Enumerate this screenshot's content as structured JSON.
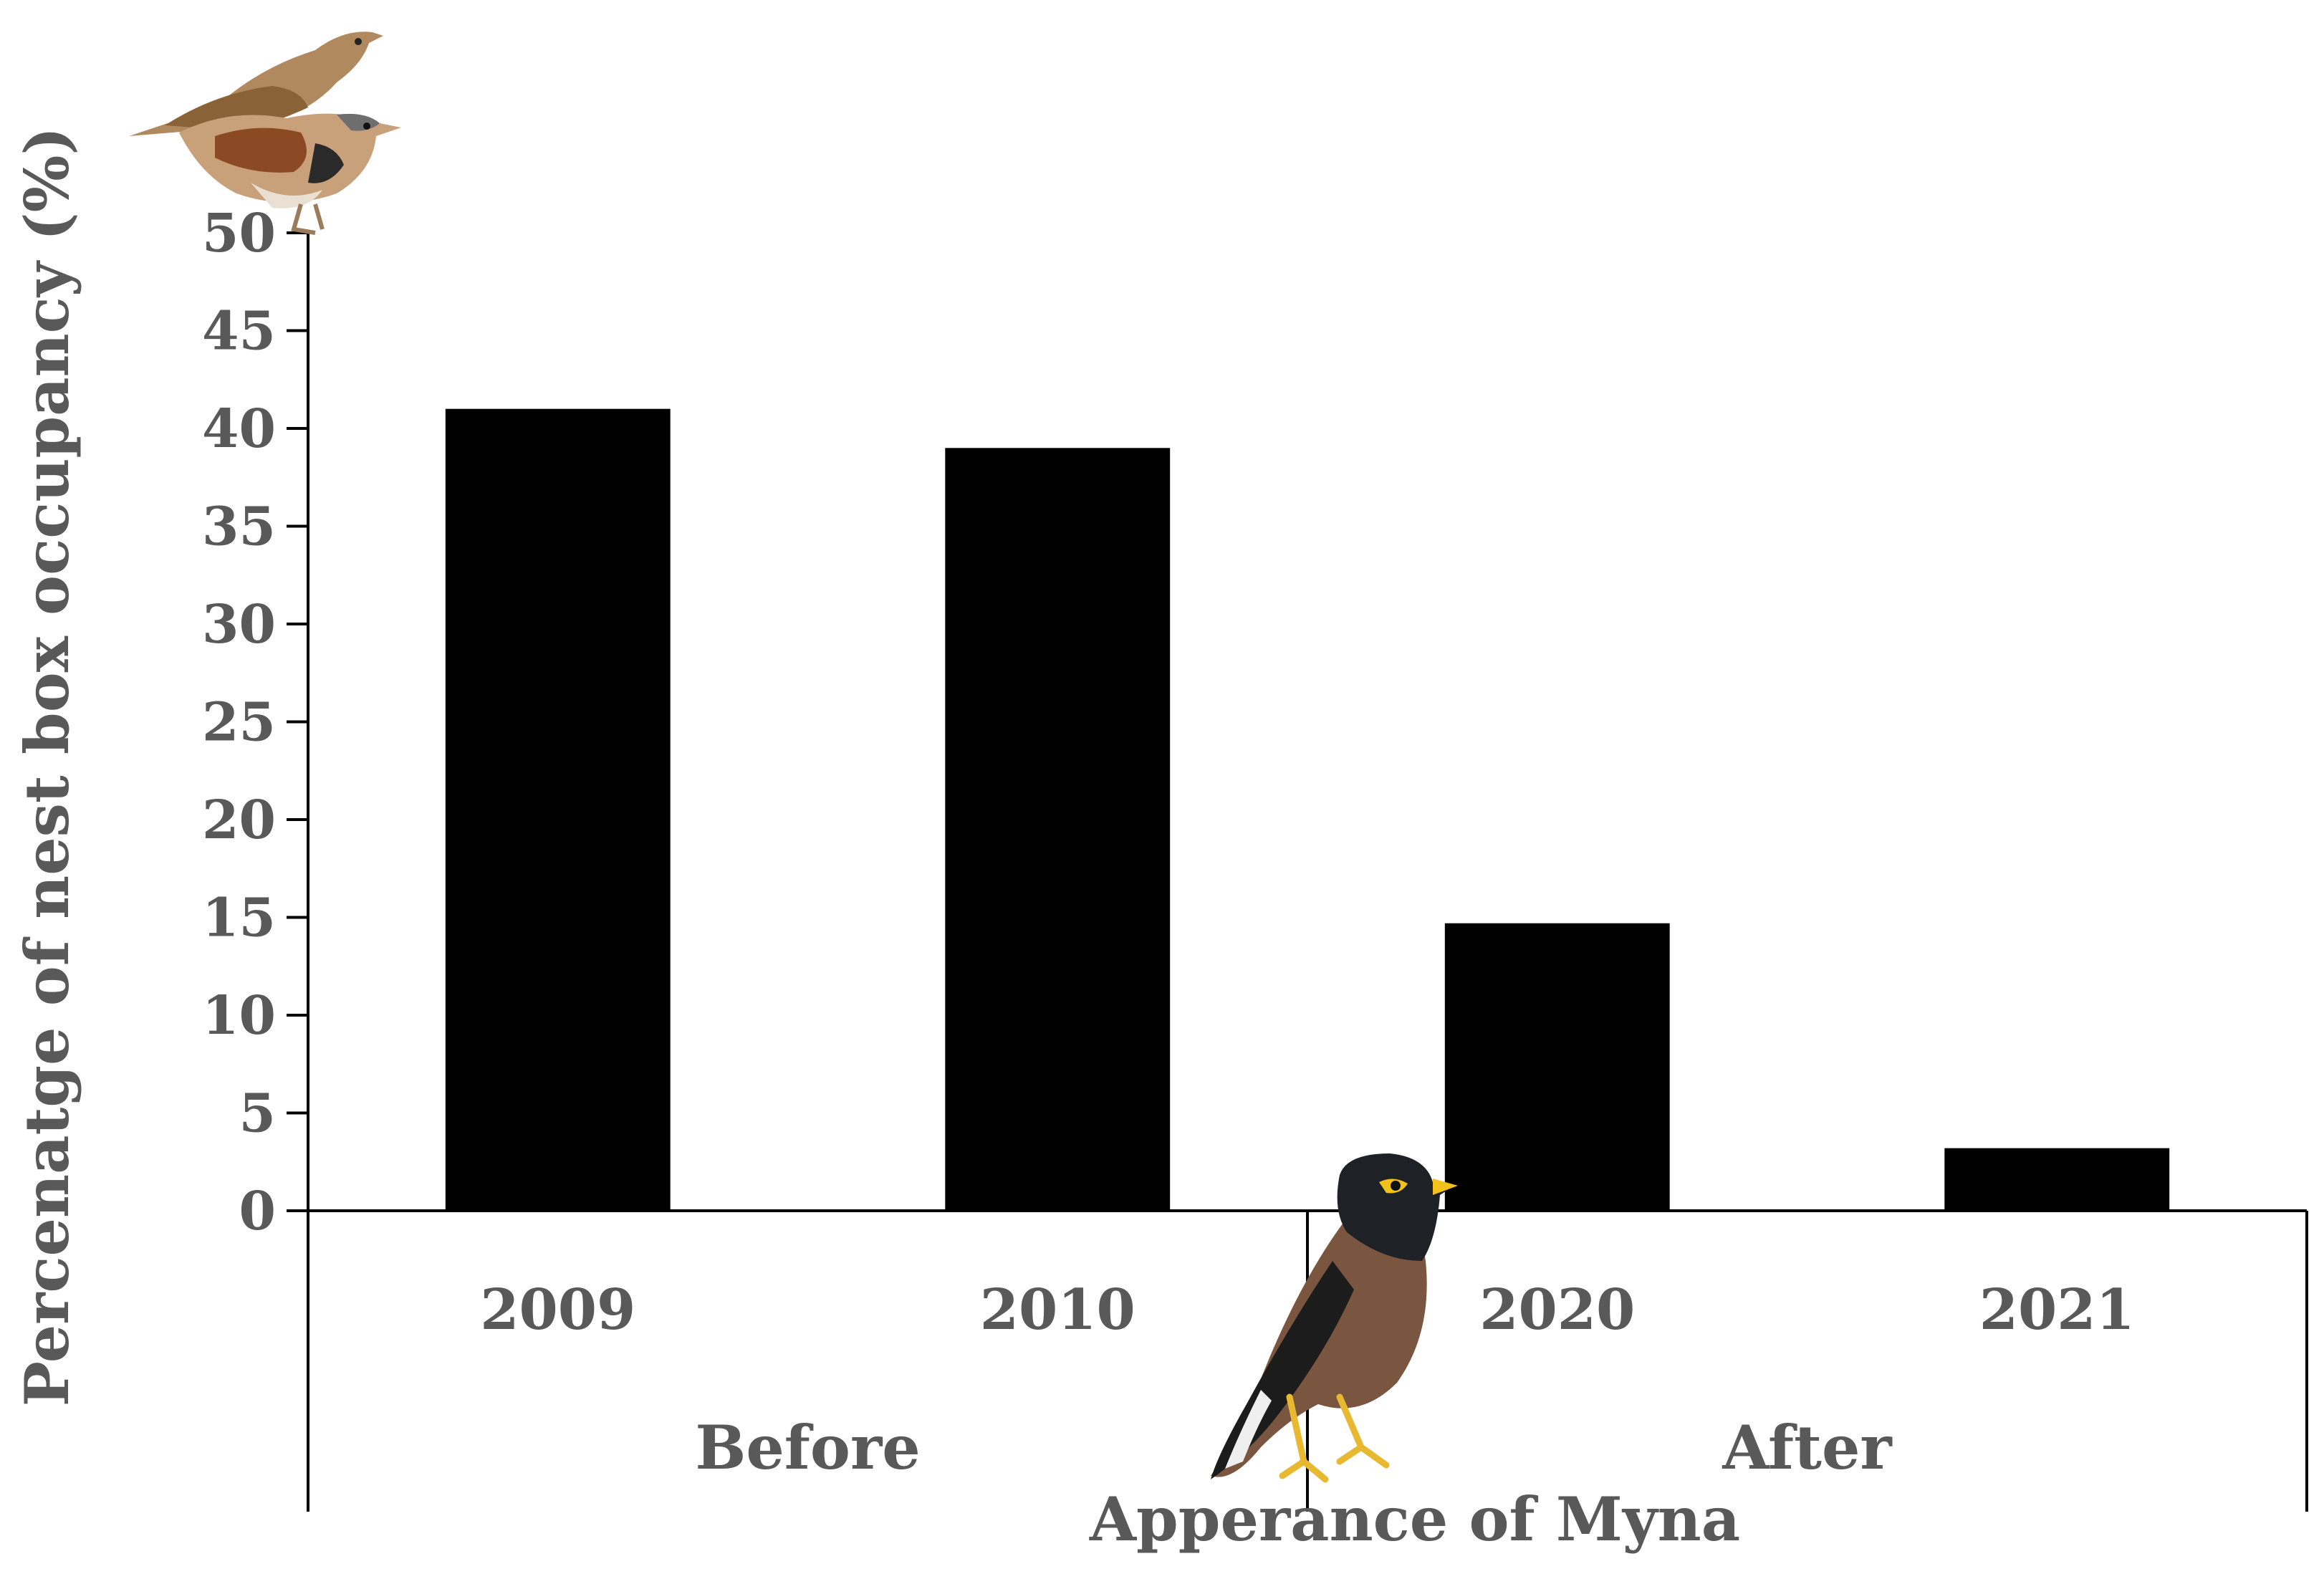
{
  "chart_data": {
    "type": "bar",
    "ylabel": "Percenatge of  nest box occupancy  (%)",
    "xlabel": "Apperance of Myna",
    "categories": [
      "2009",
      "2010",
      "2020",
      "2021"
    ],
    "groups": [
      {
        "label": "Before",
        "categories": [
          "2009",
          "2010"
        ]
      },
      {
        "label": "After",
        "categories": [
          "2020",
          "2021"
        ]
      }
    ],
    "series": [
      {
        "values": [
          41,
          39,
          14.7,
          3.2
        ],
        "color": "#000000"
      }
    ],
    "yticks": [
      0,
      5,
      10,
      15,
      20,
      25,
      30,
      35,
      40,
      45,
      50
    ],
    "ylim": [
      0,
      50
    ],
    "grid": false,
    "legend": false,
    "icons": [
      "house-sparrow-pair-icon",
      "common-myna-icon"
    ]
  }
}
